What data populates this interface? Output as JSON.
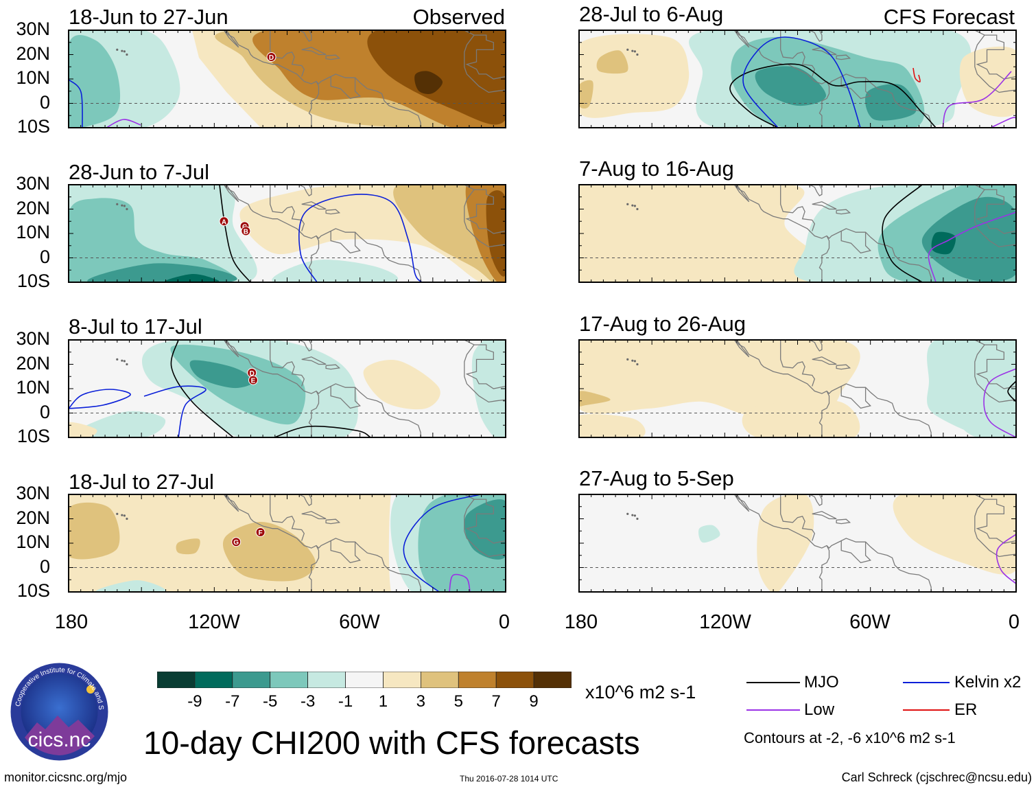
{
  "main_title": "10-day CHI200 with CFS forecasts",
  "logo": {
    "text": "cics.nc",
    "ring_text": "Cooperative Institute for Climate and Satellites"
  },
  "footer": {
    "left": "monitor.cicsnc.org/mjo",
    "center": "Thu 2016-07-28 1014 UTC",
    "right": "Carl Schreck (cjschrec@ncsu.edu)"
  },
  "panel_labels": {
    "observed": "Observed",
    "forecast": "CFS Forecast"
  },
  "lat_ticks": [
    "30N",
    "20N",
    "10N",
    "0",
    "10S"
  ],
  "lon_ticks": [
    "180",
    "120W",
    "60W",
    "0"
  ],
  "panels": [
    {
      "period": "18-Jun to 27-Jun",
      "storms": [
        {
          "id": "D",
          "lon": -96.5,
          "lat": 19
        }
      ]
    },
    {
      "period": "28-Jun to 7-Jul",
      "storms": [
        {
          "id": "A",
          "lon": -116,
          "lat": 15
        },
        {
          "id": "C",
          "lon": -107.5,
          "lat": 13
        },
        {
          "id": "B",
          "lon": -107,
          "lat": 11
        }
      ]
    },
    {
      "period": "8-Jul to 17-Jul",
      "storms": [
        {
          "id": "D",
          "lon": -104.5,
          "lat": 16.5
        },
        {
          "id": "E",
          "lon": -104,
          "lat": 13.5
        }
      ]
    },
    {
      "period": "18-Jul to 27-Jul",
      "storms": [
        {
          "id": "G",
          "lon": -111,
          "lat": 10.5
        },
        {
          "id": "F",
          "lon": -101,
          "lat": 14.5
        }
      ]
    },
    {
      "period": "28-Jul to 6-Aug",
      "storms": []
    },
    {
      "period": "7-Aug to 16-Aug",
      "storms": []
    },
    {
      "period": "17-Aug to 26-Aug",
      "storms": []
    },
    {
      "period": "27-Aug to 5-Sep",
      "storms": []
    }
  ],
  "colorbar": {
    "colors": [
      "#093d33",
      "#006b5c",
      "#3c9a8f",
      "#7dc8bb",
      "#c6e9e1",
      "#f5f5f5",
      "#f6e7c1",
      "#dfc27d",
      "#bf812d",
      "#8c510a",
      "#543005"
    ],
    "labels": [
      "-9",
      "-7",
      "-5",
      "-3",
      "-1",
      "1",
      "3",
      "5",
      "7",
      "9"
    ],
    "units": "x10^6 m2 s-1"
  },
  "legend": {
    "items": [
      {
        "label": "MJO",
        "color": "#000000"
      },
      {
        "label": "Kelvin x2",
        "color": "#0a1fd8"
      },
      {
        "label": "Low",
        "color": "#9b32e6"
      },
      {
        "label": "ER",
        "color": "#e01010"
      }
    ],
    "note": "Contours at -2, -6 x10^6 m2 s-1"
  }
}
